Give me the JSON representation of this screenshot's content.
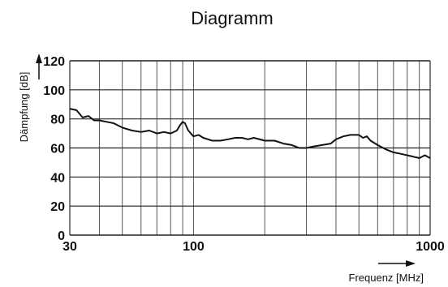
{
  "chart_data": {
    "type": "line",
    "title": "Diagramm",
    "xlabel": "Frequenz [MHz]",
    "ylabel": "Dämpfung [dB]",
    "x_scale": "log",
    "xlim": [
      30,
      1000
    ],
    "ylim": [
      0,
      120
    ],
    "x_tick_labels": [
      "30",
      "100",
      "1000"
    ],
    "y_ticks": [
      0,
      20,
      40,
      60,
      80,
      100,
      120
    ],
    "y_tick_labels": [
      "0",
      "20",
      "40",
      "60",
      "80",
      "100",
      "120"
    ],
    "grid": true,
    "series": [
      {
        "values_x": [
          30,
          32,
          34,
          36,
          38,
          40,
          43,
          46,
          50,
          55,
          60,
          65,
          70,
          75,
          80,
          85,
          88,
          90,
          92,
          95,
          100,
          105,
          110,
          120,
          130,
          140,
          150,
          160,
          170,
          180,
          200,
          220,
          240,
          260,
          280,
          300,
          320,
          350,
          380,
          400,
          430,
          460,
          500,
          520,
          540,
          560,
          600,
          650,
          700,
          750,
          800,
          850,
          900,
          950,
          1000
        ],
        "values_y": [
          87,
          86,
          81,
          82,
          79,
          79,
          78,
          77,
          74,
          72,
          71,
          72,
          70,
          71,
          70,
          72,
          76,
          78,
          77,
          72,
          68,
          69,
          67,
          65,
          65,
          66,
          67,
          67,
          66,
          67,
          65,
          65,
          63,
          62,
          60,
          60,
          61,
          62,
          63,
          66,
          68,
          69,
          69,
          67,
          68,
          65,
          62,
          59,
          57,
          56,
          55,
          54,
          53,
          55,
          53
        ]
      }
    ]
  }
}
